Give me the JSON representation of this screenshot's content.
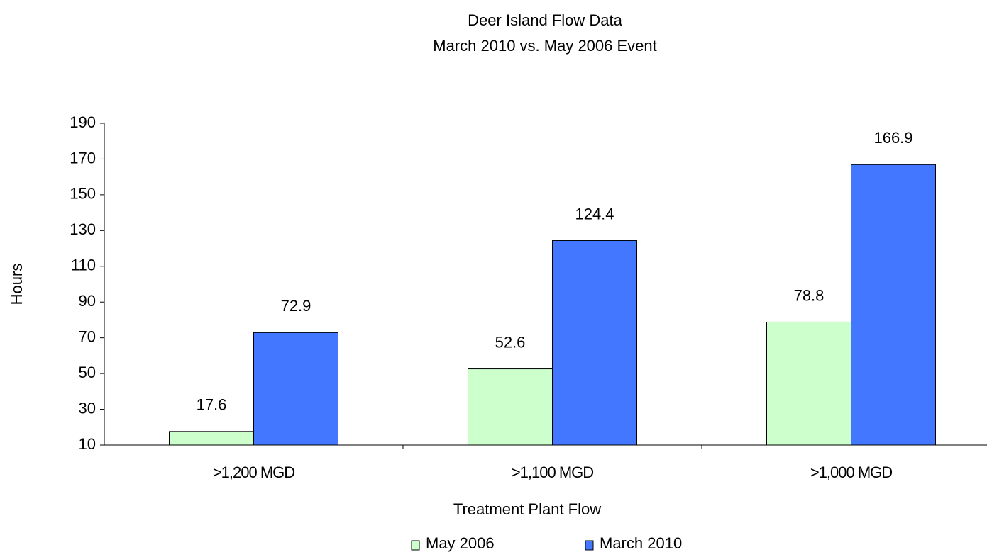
{
  "chart_data": {
    "type": "bar",
    "title": "Deer Island Flow Data",
    "subtitle": "March 2010 vs. May 2006 Event",
    "x_label": "Treatment Plant Flow",
    "y_label": "Hours",
    "categories": [
      ">1,200 MGD",
      ">1,100 MGD",
      ">1,000 MGD"
    ],
    "series": [
      {
        "name": "May 2006",
        "color": "#ccffcc",
        "values": [
          17.6,
          52.6,
          78.8
        ]
      },
      {
        "name": "March 2010",
        "color": "#4477ff",
        "values": [
          72.9,
          124.4,
          166.9
        ]
      }
    ],
    "ylim": [
      10,
      190
    ],
    "yticks": [
      10,
      30,
      50,
      70,
      90,
      110,
      130,
      150,
      170,
      190
    ],
    "grid": false,
    "legend": "bottom"
  }
}
